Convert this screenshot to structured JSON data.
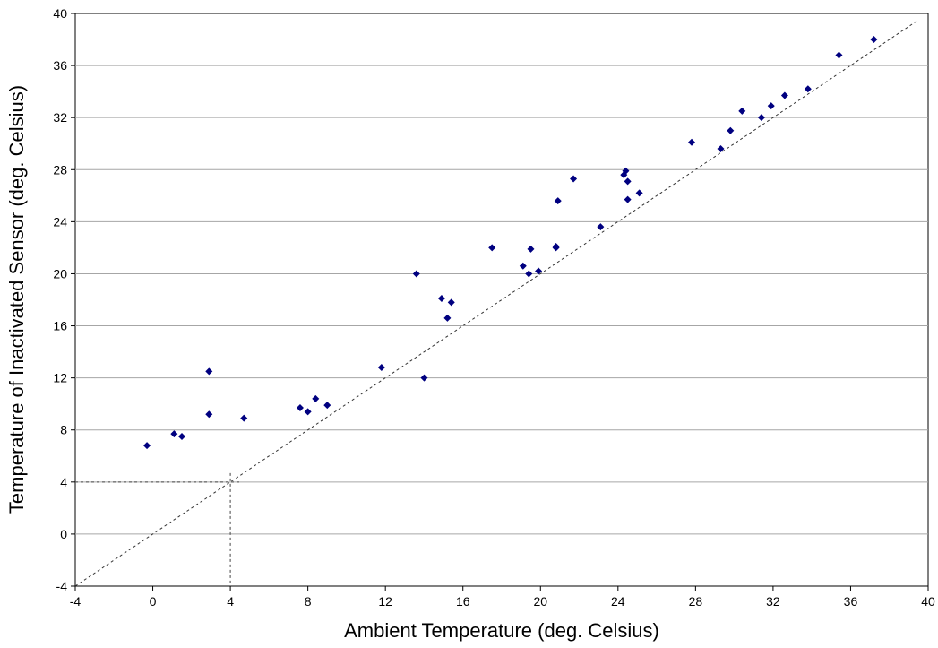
{
  "chart_data": {
    "type": "scatter",
    "xlabel": "Ambient Temperature (deg. Celsius)",
    "ylabel": "Temperature of Inactivated Sensor (deg. Celsius)",
    "xlim": [
      -4,
      40
    ],
    "ylim": [
      -4,
      40
    ],
    "x_ticks": [
      -4,
      0,
      4,
      8,
      12,
      16,
      20,
      24,
      28,
      32,
      36,
      40
    ],
    "y_ticks": [
      -4,
      0,
      4,
      8,
      12,
      16,
      20,
      24,
      28,
      32,
      36,
      40
    ],
    "grid": "horizontal",
    "legend": "none",
    "marker_color": "#000080",
    "points": [
      {
        "x": -0.3,
        "y": 6.8
      },
      {
        "x": 1.1,
        "y": 7.7
      },
      {
        "x": 1.5,
        "y": 7.5
      },
      {
        "x": 2.9,
        "y": 12.5
      },
      {
        "x": 2.9,
        "y": 9.2
      },
      {
        "x": 4.7,
        "y": 8.9
      },
      {
        "x": 7.6,
        "y": 9.7
      },
      {
        "x": 8.0,
        "y": 9.4
      },
      {
        "x": 8.4,
        "y": 10.4
      },
      {
        "x": 9.0,
        "y": 9.9
      },
      {
        "x": 11.8,
        "y": 12.8
      },
      {
        "x": 13.6,
        "y": 20.0
      },
      {
        "x": 14.0,
        "y": 12.0
      },
      {
        "x": 14.9,
        "y": 18.1
      },
      {
        "x": 15.2,
        "y": 16.6
      },
      {
        "x": 15.4,
        "y": 17.8
      },
      {
        "x": 17.5,
        "y": 22.0
      },
      {
        "x": 19.1,
        "y": 20.6
      },
      {
        "x": 19.4,
        "y": 20.0
      },
      {
        "x": 19.5,
        "y": 21.9
      },
      {
        "x": 19.9,
        "y": 20.2
      },
      {
        "x": 20.8,
        "y": 22.0
      },
      {
        "x": 20.8,
        "y": 22.1
      },
      {
        "x": 20.9,
        "y": 25.6
      },
      {
        "x": 21.7,
        "y": 27.3
      },
      {
        "x": 23.1,
        "y": 23.6
      },
      {
        "x": 24.3,
        "y": 27.6
      },
      {
        "x": 24.4,
        "y": 27.9
      },
      {
        "x": 24.5,
        "y": 27.1
      },
      {
        "x": 24.5,
        "y": 25.7
      },
      {
        "x": 25.1,
        "y": 26.2
      },
      {
        "x": 27.8,
        "y": 30.1
      },
      {
        "x": 29.3,
        "y": 29.6
      },
      {
        "x": 29.8,
        "y": 31.0
      },
      {
        "x": 30.4,
        "y": 32.5
      },
      {
        "x": 31.4,
        "y": 32.0
      },
      {
        "x": 31.9,
        "y": 32.9
      },
      {
        "x": 32.6,
        "y": 33.7
      },
      {
        "x": 33.8,
        "y": 34.2
      },
      {
        "x": 35.4,
        "y": 36.8
      },
      {
        "x": 37.2,
        "y": 38.0
      }
    ],
    "reference_line": {
      "style": "dashed",
      "from": [
        -4,
        -4
      ],
      "to": [
        39.5,
        39.5
      ]
    },
    "guide_lines": {
      "style": "dashed",
      "x": 4,
      "y": 4
    }
  }
}
